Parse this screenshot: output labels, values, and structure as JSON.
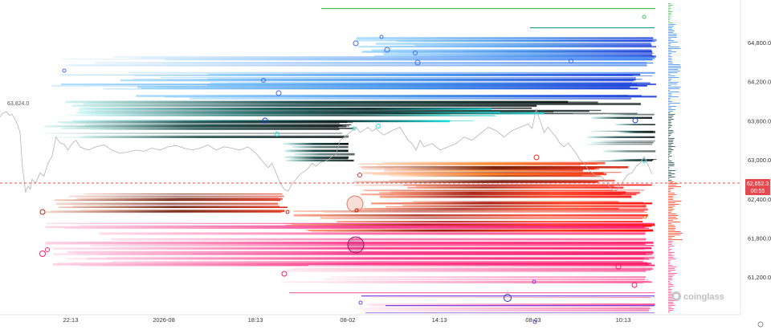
{
  "chart_data": {
    "type": "line",
    "title": "",
    "xlabel": "",
    "ylabel": "",
    "ylim": [
      60550,
      65450
    ],
    "grid": false,
    "y_ticks": [
      64800,
      64200,
      63600,
      63000,
      62400,
      61800,
      61200
    ],
    "y_tick_labels": [
      "64,800.0",
      "64,200.0",
      "63,600.0",
      "63,000.0",
      "62,400.0",
      "61,800.0",
      "61,200.0"
    ],
    "x_ticks": [
      "22:13",
      "2026-08",
      "18:13",
      "08-02",
      "14:13",
      "08-03",
      "10:13"
    ],
    "price_series": {
      "name": "",
      "x": [
        0,
        4,
        8,
        12,
        15,
        18,
        20,
        22,
        25,
        28,
        30,
        32,
        35,
        38,
        40,
        45,
        50,
        55,
        60,
        65,
        70,
        75,
        80,
        85,
        90,
        95,
        100,
        110,
        120,
        130,
        140,
        150,
        160,
        170,
        180,
        190,
        200,
        210,
        220,
        230,
        240,
        250,
        260,
        270,
        280,
        290,
        300,
        310,
        320,
        330,
        335,
        340,
        345,
        350,
        355,
        360,
        365,
        370,
        375,
        380,
        385,
        390,
        395,
        400,
        405,
        410,
        415,
        420,
        425,
        430,
        435,
        440,
        445,
        450,
        455,
        460,
        465,
        470,
        475,
        480,
        490,
        500,
        510,
        515,
        520,
        525,
        530,
        540,
        550,
        560,
        570,
        580,
        590,
        600,
        610,
        620,
        630,
        640,
        650,
        660,
        665,
        670,
        675,
        680,
        685,
        690,
        695,
        700,
        705,
        710,
        715,
        720,
        725,
        730,
        735,
        740,
        745,
        750,
        755,
        760,
        765,
        770,
        775,
        780,
        785,
        790,
        795,
        800,
        805,
        810,
        815
      ],
      "y": [
        63660,
        63720,
        63740,
        63680,
        63700,
        63640,
        63590,
        63540,
        63420,
        62900,
        62700,
        62500,
        62600,
        62550,
        62700,
        62650,
        62800,
        62750,
        62950,
        63050,
        63350,
        63260,
        63240,
        63150,
        63250,
        63300,
        63200,
        63150,
        63200,
        63230,
        63150,
        63100,
        63120,
        63150,
        63130,
        63180,
        63150,
        63200,
        63220,
        63180,
        63150,
        63180,
        63230,
        63150,
        63200,
        63180,
        63150,
        63200,
        63100,
        62950,
        62880,
        62950,
        62800,
        62650,
        62550,
        62520,
        62630,
        62700,
        62780,
        62820,
        62870,
        62950,
        62900,
        62960,
        62970,
        63000,
        63050,
        63080,
        63300,
        63350,
        63400,
        63450,
        63500,
        63420,
        63460,
        63500,
        63440,
        63480,
        63420,
        63380,
        63450,
        63500,
        63300,
        63250,
        63150,
        63300,
        63200,
        63250,
        63150,
        63200,
        63250,
        63350,
        63300,
        63400,
        63500,
        63450,
        63350,
        63450,
        63500,
        63550,
        63480,
        63780,
        63600,
        63420,
        63500,
        63420,
        63350,
        63250,
        63200,
        63260,
        63180,
        63100,
        63000,
        62950,
        62850,
        62800,
        62750,
        62760,
        62700,
        62620,
        62540,
        62520,
        62600,
        62700,
        62780,
        62800,
        62900,
        62950,
        63050,
        62920,
        62780
      ]
    },
    "start_label": "63,824.0",
    "current_price": 62652.3,
    "current_price_label": "62,652.3",
    "countdown": "00:55",
    "watermark": "coinglass",
    "colors": {
      "price_line": "#b3b3b3",
      "current_price": "#e5484d",
      "short_liq_light": "#9dd8ff",
      "short_liq_mid": "#3f8eea",
      "short_liq_deep": "#1d3fd8",
      "short_liq_cyan": "#1fe0e0",
      "long_liq_deep": "#c2220f",
      "long_liq_mid": "#ff5a0a",
      "long_liq_pink": "#ff1f7a",
      "top_band": "#4bc45a",
      "bottom_band": "#7b3fe0"
    }
  }
}
